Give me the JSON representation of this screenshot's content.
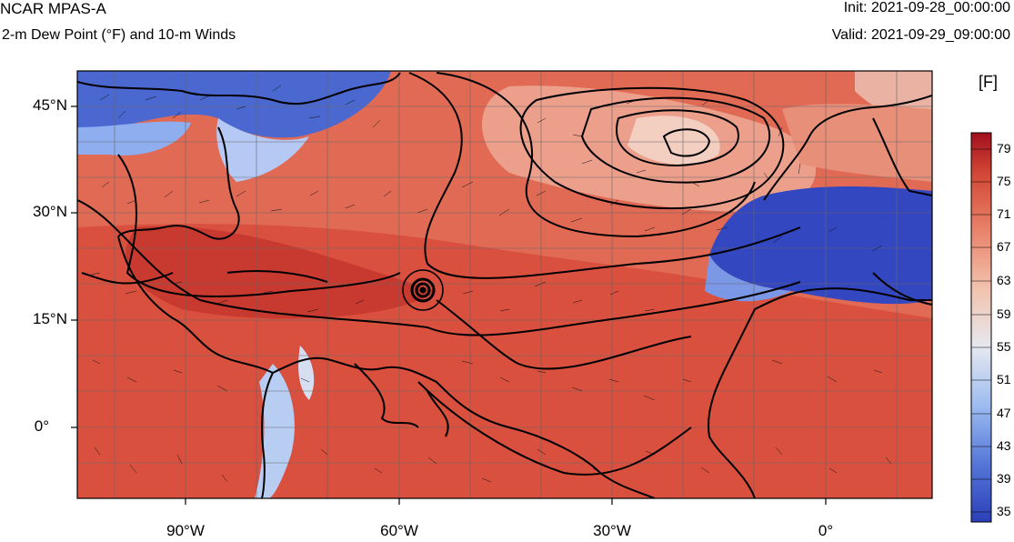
{
  "header": {
    "model": "NCAR MPAS-A",
    "field": "2-m Dew Point (°F) and 10-m Winds",
    "init": "Init: 2021-09-28_00:00:00",
    "valid": "Valid: 2021-09-29_09:00:00"
  },
  "axes": {
    "lat_labels": [
      "45°N",
      "30°N",
      "15°N",
      "0°"
    ],
    "lon_labels": [
      "90°W",
      "60°W",
      "30°W",
      "0°"
    ]
  },
  "colorbar": {
    "unit": "[F]",
    "ticks": [
      "79",
      "75",
      "71",
      "67",
      "63",
      "59",
      "55",
      "51",
      "47",
      "43",
      "39",
      "35"
    ],
    "low_color": "#2b3fb8",
    "mid_color": "#f0e6e0",
    "high_color": "#b2121f"
  },
  "colors": {
    "moist_red": "#d84a3c",
    "dry_blue": "#3a56c8",
    "coast": "#000000"
  }
}
